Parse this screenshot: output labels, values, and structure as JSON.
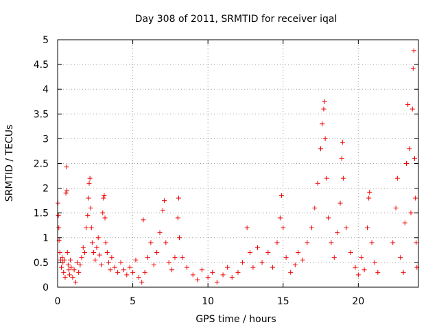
{
  "chart_data": {
    "type": "scatter",
    "title": "Day 308 of 2011, SRMTID for receiver iqal",
    "xlabel": "GPS time / hours",
    "ylabel": "SRMTID / TECUs",
    "xlim": [
      0,
      24
    ],
    "ylim": [
      0,
      5
    ],
    "xticks": [
      0,
      5,
      10,
      15,
      20
    ],
    "xtick_labels": [
      "0",
      "5",
      "10",
      "15",
      "20"
    ],
    "yticks": [
      0,
      0.5,
      1,
      1.5,
      2,
      2.5,
      3,
      3.5,
      4,
      4.5,
      5
    ],
    "ytick_labels": [
      "0",
      "0.5",
      "1",
      "1.5",
      "2",
      "2.5",
      "3",
      "3.5",
      "4",
      "4.5",
      "5"
    ],
    "grid": true,
    "marker": "+",
    "color": "#ee0000",
    "series": [
      {
        "name": "SRMTID",
        "points": [
          [
            0.02,
            1.7
          ],
          [
            0.05,
            1.45
          ],
          [
            0.08,
            1.2
          ],
          [
            0.1,
            0.95
          ],
          [
            0.15,
            0.7
          ],
          [
            0.2,
            0.55
          ],
          [
            0.25,
            0.4
          ],
          [
            0.3,
            0.6
          ],
          [
            0.35,
            0.5
          ],
          [
            0.4,
            0.3
          ],
          [
            0.45,
            0.55
          ],
          [
            0.5,
            0.2
          ],
          [
            0.55,
            1.9
          ],
          [
            0.6,
            2.43
          ],
          [
            0.62,
            1.95
          ],
          [
            0.65,
            0.7
          ],
          [
            0.7,
            0.45
          ],
          [
            0.75,
            0.35
          ],
          [
            0.8,
            0.25
          ],
          [
            0.85,
            0.55
          ],
          [
            0.9,
            0.4
          ],
          [
            1.0,
            0.2
          ],
          [
            1.1,
            0.35
          ],
          [
            1.2,
            0.1
          ],
          [
            1.3,
            0.5
          ],
          [
            1.4,
            0.3
          ],
          [
            1.5,
            0.45
          ],
          [
            1.6,
            0.6
          ],
          [
            1.7,
            0.8
          ],
          [
            1.8,
            0.7
          ],
          [
            1.9,
            1.2
          ],
          [
            2.0,
            1.45
          ],
          [
            2.05,
            1.8
          ],
          [
            2.1,
            2.1
          ],
          [
            2.15,
            2.2
          ],
          [
            2.2,
            1.6
          ],
          [
            2.25,
            1.2
          ],
          [
            2.3,
            0.9
          ],
          [
            2.4,
            0.7
          ],
          [
            2.5,
            0.55
          ],
          [
            2.6,
            0.8
          ],
          [
            2.7,
            1.0
          ],
          [
            2.8,
            0.65
          ],
          [
            2.9,
            0.45
          ],
          [
            3.0,
            1.5
          ],
          [
            3.05,
            1.8
          ],
          [
            3.1,
            1.85
          ],
          [
            3.15,
            1.4
          ],
          [
            3.2,
            0.9
          ],
          [
            3.3,
            0.7
          ],
          [
            3.4,
            0.5
          ],
          [
            3.5,
            0.35
          ],
          [
            3.6,
            0.6
          ],
          [
            3.8,
            0.4
          ],
          [
            4.0,
            0.3
          ],
          [
            4.2,
            0.5
          ],
          [
            4.4,
            0.35
          ],
          [
            4.6,
            0.25
          ],
          [
            4.8,
            0.4
          ],
          [
            5.0,
            0.3
          ],
          [
            5.2,
            0.55
          ],
          [
            5.4,
            0.2
          ],
          [
            5.6,
            0.1
          ],
          [
            5.7,
            1.36
          ],
          [
            5.8,
            0.3
          ],
          [
            6.0,
            0.6
          ],
          [
            6.2,
            0.9
          ],
          [
            6.4,
            0.45
          ],
          [
            6.6,
            0.7
          ],
          [
            6.8,
            1.1
          ],
          [
            7.0,
            1.55
          ],
          [
            7.1,
            1.75
          ],
          [
            7.2,
            0.9
          ],
          [
            7.4,
            0.5
          ],
          [
            7.6,
            0.35
          ],
          [
            7.8,
            0.6
          ],
          [
            8.0,
            1.4
          ],
          [
            8.05,
            1.8
          ],
          [
            8.1,
            1.0
          ],
          [
            8.3,
            0.6
          ],
          [
            8.6,
            0.4
          ],
          [
            9.0,
            0.25
          ],
          [
            9.3,
            0.15
          ],
          [
            9.6,
            0.35
          ],
          [
            10.0,
            0.2
          ],
          [
            10.3,
            0.3
          ],
          [
            10.6,
            0.1
          ],
          [
            11.0,
            0.25
          ],
          [
            11.3,
            0.4
          ],
          [
            11.6,
            0.2
          ],
          [
            12.0,
            0.3
          ],
          [
            12.3,
            0.5
          ],
          [
            12.6,
            1.2
          ],
          [
            12.8,
            0.7
          ],
          [
            13.0,
            0.4
          ],
          [
            13.3,
            0.8
          ],
          [
            13.6,
            0.5
          ],
          [
            14.0,
            0.7
          ],
          [
            14.3,
            0.4
          ],
          [
            14.6,
            0.9
          ],
          [
            14.8,
            1.4
          ],
          [
            14.9,
            1.85
          ],
          [
            15.0,
            1.2
          ],
          [
            15.2,
            0.6
          ],
          [
            15.5,
            0.3
          ],
          [
            15.8,
            0.45
          ],
          [
            16.0,
            0.7
          ],
          [
            16.3,
            0.55
          ],
          [
            16.6,
            0.9
          ],
          [
            16.9,
            1.2
          ],
          [
            17.1,
            1.6
          ],
          [
            17.3,
            2.1
          ],
          [
            17.5,
            2.8
          ],
          [
            17.6,
            3.3
          ],
          [
            17.7,
            3.6
          ],
          [
            17.75,
            3.75
          ],
          [
            17.8,
            3.0
          ],
          [
            17.9,
            2.2
          ],
          [
            18.0,
            1.4
          ],
          [
            18.2,
            0.9
          ],
          [
            18.4,
            0.6
          ],
          [
            18.6,
            1.1
          ],
          [
            18.8,
            1.7
          ],
          [
            18.9,
            2.6
          ],
          [
            18.95,
            2.93
          ],
          [
            19.0,
            2.2
          ],
          [
            19.2,
            1.2
          ],
          [
            19.5,
            0.7
          ],
          [
            19.8,
            0.4
          ],
          [
            20.0,
            0.25
          ],
          [
            20.2,
            0.6
          ],
          [
            20.4,
            0.35
          ],
          [
            20.6,
            1.2
          ],
          [
            20.7,
            1.8
          ],
          [
            20.75,
            1.92
          ],
          [
            20.9,
            0.9
          ],
          [
            21.1,
            0.5
          ],
          [
            21.3,
            0.3
          ],
          [
            22.3,
            0.9
          ],
          [
            22.5,
            1.6
          ],
          [
            22.6,
            2.2
          ],
          [
            22.8,
            0.6
          ],
          [
            23.0,
            0.3
          ],
          [
            23.1,
            1.3
          ],
          [
            23.2,
            2.5
          ],
          [
            23.3,
            3.69
          ],
          [
            23.4,
            2.8
          ],
          [
            23.5,
            1.5
          ],
          [
            23.6,
            3.6
          ],
          [
            23.65,
            4.42
          ],
          [
            23.7,
            4.78
          ],
          [
            23.75,
            2.6
          ],
          [
            23.8,
            1.8
          ],
          [
            23.85,
            0.9
          ],
          [
            23.9,
            0.4
          ]
        ]
      }
    ]
  }
}
